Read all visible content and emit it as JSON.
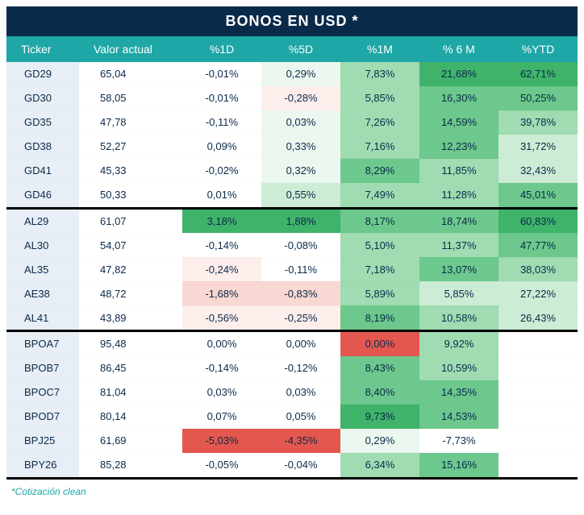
{
  "title": "BONOS EN USD *",
  "footnote": "*Cotización clean",
  "colors": {
    "title_bg": "#0a2a4a",
    "header_bg": "#1fa6a6",
    "ticker_bg": "#e8eef5",
    "valor_bg": "#ffffff",
    "footnote_color": "#1fa6a6",
    "text": "#0a2a4a",
    "sep": "#000000",
    "heat": {
      "pos5": "#3fb36a",
      "pos4": "#6cc88c",
      "pos3": "#9fdcb2",
      "pos2": "#ccecd5",
      "pos1": "#ecf7ef",
      "zero": "#ffffff",
      "neg1": "#fdeeec",
      "neg2": "#f9d7d2",
      "neg3": "#f3b3ab",
      "neg4": "#ec857a",
      "neg5": "#e4574e"
    }
  },
  "columns": [
    {
      "key": "ticker",
      "label": "Ticker"
    },
    {
      "key": "valor",
      "label": "Valor actual"
    },
    {
      "key": "d1",
      "label": "%1D"
    },
    {
      "key": "d5",
      "label": "%5D"
    },
    {
      "key": "m1",
      "label": "%1M"
    },
    {
      "key": "m6",
      "label": "% 6 M"
    },
    {
      "key": "ytd",
      "label": "%YTD"
    }
  ],
  "groups": [
    {
      "rows": [
        {
          "ticker": "GD29",
          "valor": "65,04",
          "d1": {
            "v": "-0,01%",
            "h": "zero"
          },
          "d5": {
            "v": "0,29%",
            "h": "pos1"
          },
          "m1": {
            "v": "7,83%",
            "h": "pos3"
          },
          "m6": {
            "v": "21,68%",
            "h": "pos5"
          },
          "ytd": {
            "v": "62,71%",
            "h": "pos5"
          }
        },
        {
          "ticker": "GD30",
          "valor": "58,05",
          "d1": {
            "v": "-0,01%",
            "h": "zero"
          },
          "d5": {
            "v": "-0,28%",
            "h": "neg1"
          },
          "m1": {
            "v": "5,85%",
            "h": "pos3"
          },
          "m6": {
            "v": "16,30%",
            "h": "pos4"
          },
          "ytd": {
            "v": "50,25%",
            "h": "pos4"
          }
        },
        {
          "ticker": "GD35",
          "valor": "47,78",
          "d1": {
            "v": "-0,11%",
            "h": "zero"
          },
          "d5": {
            "v": "0,03%",
            "h": "pos1"
          },
          "m1": {
            "v": "7,26%",
            "h": "pos3"
          },
          "m6": {
            "v": "14,59%",
            "h": "pos4"
          },
          "ytd": {
            "v": "39,78%",
            "h": "pos3"
          }
        },
        {
          "ticker": "GD38",
          "valor": "52,27",
          "d1": {
            "v": "0,09%",
            "h": "zero"
          },
          "d5": {
            "v": "0,33%",
            "h": "pos1"
          },
          "m1": {
            "v": "7,16%",
            "h": "pos3"
          },
          "m6": {
            "v": "12,23%",
            "h": "pos4"
          },
          "ytd": {
            "v": "31,72%",
            "h": "pos2"
          }
        },
        {
          "ticker": "GD41",
          "valor": "45,33",
          "d1": {
            "v": "-0,02%",
            "h": "zero"
          },
          "d5": {
            "v": "0,32%",
            "h": "pos1"
          },
          "m1": {
            "v": "8,29%",
            "h": "pos4"
          },
          "m6": {
            "v": "11,85%",
            "h": "pos3"
          },
          "ytd": {
            "v": "32,43%",
            "h": "pos2"
          }
        },
        {
          "ticker": "GD46",
          "valor": "50,33",
          "d1": {
            "v": "0,01%",
            "h": "zero"
          },
          "d5": {
            "v": "0,55%",
            "h": "pos2"
          },
          "m1": {
            "v": "7,49%",
            "h": "pos3"
          },
          "m6": {
            "v": "11,28%",
            "h": "pos3"
          },
          "ytd": {
            "v": "45,01%",
            "h": "pos4"
          }
        }
      ]
    },
    {
      "rows": [
        {
          "ticker": "AL29",
          "valor": "61,07",
          "d1": {
            "v": "3,18%",
            "h": "pos5"
          },
          "d5": {
            "v": "1,88%",
            "h": "pos5"
          },
          "m1": {
            "v": "8,17%",
            "h": "pos4"
          },
          "m6": {
            "v": "18,74%",
            "h": "pos4"
          },
          "ytd": {
            "v": "60,83%",
            "h": "pos5"
          }
        },
        {
          "ticker": "AL30",
          "valor": "54,07",
          "d1": {
            "v": "-0,14%",
            "h": "zero"
          },
          "d5": {
            "v": "-0,08%",
            "h": "zero"
          },
          "m1": {
            "v": "5,10%",
            "h": "pos3"
          },
          "m6": {
            "v": "11,37%",
            "h": "pos3"
          },
          "ytd": {
            "v": "47,77%",
            "h": "pos4"
          }
        },
        {
          "ticker": "AL35",
          "valor": "47,82",
          "d1": {
            "v": "-0,24%",
            "h": "neg1"
          },
          "d5": {
            "v": "-0,11%",
            "h": "zero"
          },
          "m1": {
            "v": "7,18%",
            "h": "pos3"
          },
          "m6": {
            "v": "13,07%",
            "h": "pos4"
          },
          "ytd": {
            "v": "38,03%",
            "h": "pos3"
          }
        },
        {
          "ticker": "AE38",
          "valor": "48,72",
          "d1": {
            "v": "-1,68%",
            "h": "neg2"
          },
          "d5": {
            "v": "-0,83%",
            "h": "neg2"
          },
          "m1": {
            "v": "5,89%",
            "h": "pos3"
          },
          "m6": {
            "v": "5,85%",
            "h": "pos2"
          },
          "ytd": {
            "v": "27,22%",
            "h": "pos2"
          }
        },
        {
          "ticker": "AL41",
          "valor": "43,89",
          "d1": {
            "v": "-0,56%",
            "h": "neg1"
          },
          "d5": {
            "v": "-0,25%",
            "h": "neg1"
          },
          "m1": {
            "v": "8,19%",
            "h": "pos4"
          },
          "m6": {
            "v": "10,58%",
            "h": "pos3"
          },
          "ytd": {
            "v": "26,43%",
            "h": "pos2"
          }
        }
      ]
    },
    {
      "rows": [
        {
          "ticker": "BPOA7",
          "valor": "95,48",
          "d1": {
            "v": "0,00%",
            "h": "zero"
          },
          "d5": {
            "v": "0,00%",
            "h": "zero"
          },
          "m1": {
            "v": "0,00%",
            "h": "neg5"
          },
          "m6": {
            "v": "9,92%",
            "h": "pos3"
          },
          "ytd": {
            "v": "",
            "h": "zero"
          }
        },
        {
          "ticker": "BPOB7",
          "valor": "86,45",
          "d1": {
            "v": "-0,14%",
            "h": "zero"
          },
          "d5": {
            "v": "-0,12%",
            "h": "zero"
          },
          "m1": {
            "v": "8,43%",
            "h": "pos4"
          },
          "m6": {
            "v": "10,59%",
            "h": "pos3"
          },
          "ytd": {
            "v": "",
            "h": "zero"
          }
        },
        {
          "ticker": "BPOC7",
          "valor": "81,04",
          "d1": {
            "v": "0,03%",
            "h": "zero"
          },
          "d5": {
            "v": "0,03%",
            "h": "zero"
          },
          "m1": {
            "v": "8,40%",
            "h": "pos4"
          },
          "m6": {
            "v": "14,35%",
            "h": "pos4"
          },
          "ytd": {
            "v": "",
            "h": "zero"
          }
        },
        {
          "ticker": "BPOD7",
          "valor": "80,14",
          "d1": {
            "v": "0,07%",
            "h": "zero"
          },
          "d5": {
            "v": "0,05%",
            "h": "zero"
          },
          "m1": {
            "v": "9,73%",
            "h": "pos5"
          },
          "m6": {
            "v": "14,53%",
            "h": "pos4"
          },
          "ytd": {
            "v": "",
            "h": "zero"
          }
        },
        {
          "ticker": "BPJ25",
          "valor": "61,69",
          "d1": {
            "v": "-5,03%",
            "h": "neg5"
          },
          "d5": {
            "v": "-4,35%",
            "h": "neg5"
          },
          "m1": {
            "v": "0,29%",
            "h": "pos1"
          },
          "m6": {
            "v": "-7,73%",
            "h": "zero"
          },
          "ytd": {
            "v": "",
            "h": "zero"
          }
        },
        {
          "ticker": "BPY26",
          "valor": "85,28",
          "d1": {
            "v": "-0,05%",
            "h": "zero"
          },
          "d5": {
            "v": "-0,04%",
            "h": "zero"
          },
          "m1": {
            "v": "6,34%",
            "h": "pos3"
          },
          "m6": {
            "v": "15,16%",
            "h": "pos4"
          },
          "ytd": {
            "v": "",
            "h": "zero"
          }
        }
      ]
    }
  ]
}
